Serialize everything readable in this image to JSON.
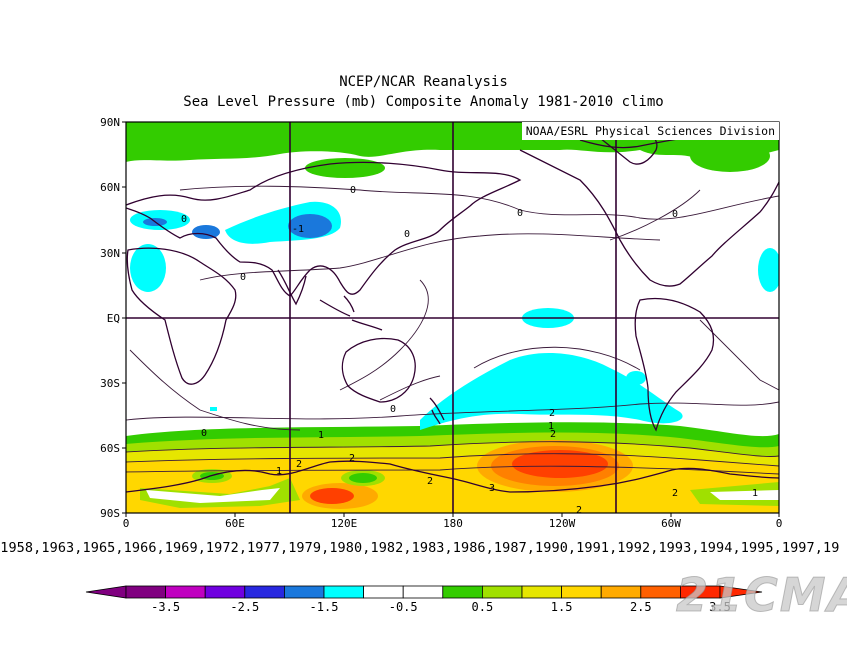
{
  "title_line1": "NCEP/NCAR Reanalysis",
  "title_line2": "Sea Level Pressure (mb) Composite Anomaly 1981-2010 climo",
  "credit": "NOAA/ESRL Physical Sciences Division",
  "lat_labels": [
    "90N",
    "60N",
    "30N",
    "EQ",
    "30S",
    "60S",
    "90S"
  ],
  "lon_labels": [
    "0",
    "60E",
    "120E",
    "180",
    "120W",
    "60W",
    "0"
  ],
  "years_text": ",1958,1963,1965,1966,1969,1972,1977,1979,1980,1982,1983,1986,1987,1990,1991,1992,1993,1994,1995,1997,19",
  "colorbar": {
    "tick_labels": [
      "-3.5",
      "-2.5",
      "-1.5",
      "-0.5",
      "0.5",
      "1.5",
      "2.5",
      "3.5"
    ],
    "colors": [
      "#800080",
      "#c000c0",
      "#7000e0",
      "#2828e0",
      "#1a78dc",
      "#00ffff",
      "#ffffff",
      "#ffffff",
      "#33cc00",
      "#a0e000",
      "#e6e600",
      "#ffd700",
      "#ffaa00",
      "#ff6000",
      "#ff2800"
    ]
  },
  "contour_labels": [
    "0",
    "0",
    "0",
    "0",
    "0",
    "0",
    "-1",
    "0",
    "0",
    "1",
    "1",
    "2",
    "2",
    "1",
    "2",
    "2",
    "2",
    "3",
    "2",
    "2",
    "1"
  ],
  "watermark": "21CMA"
}
